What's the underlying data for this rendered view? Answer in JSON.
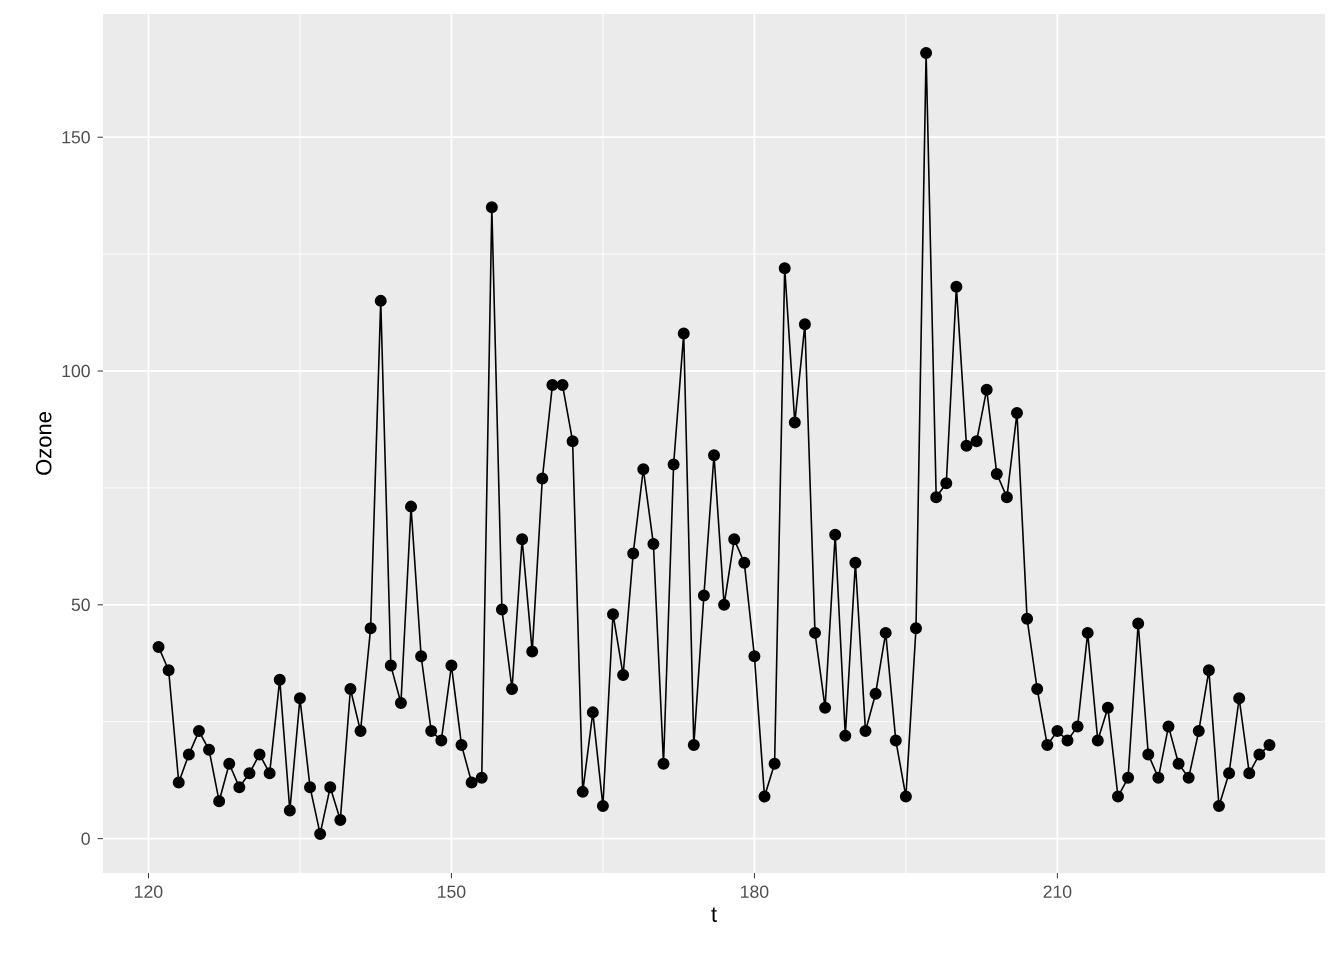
{
  "chart_data": {
    "type": "line",
    "xlabel": "t",
    "ylabel": "Ozone",
    "x": [
      121,
      122,
      123,
      124,
      125,
      126,
      127,
      128,
      129,
      130,
      131,
      132,
      133,
      134,
      135,
      136,
      137,
      138,
      139,
      140,
      141,
      142,
      143,
      144,
      145,
      146,
      147,
      148,
      149,
      150,
      151,
      152,
      153,
      154,
      155,
      156,
      157,
      158,
      159,
      160,
      161,
      162,
      163,
      164,
      165,
      166,
      167,
      168,
      169,
      170,
      171,
      172,
      173,
      174,
      175,
      176,
      177,
      178,
      179,
      180,
      181,
      182,
      183,
      184,
      185,
      186,
      187,
      188,
      189,
      190,
      191,
      192,
      193,
      194,
      195,
      196,
      197,
      198,
      199,
      200,
      201,
      202,
      203,
      204,
      205,
      206,
      207,
      208,
      209,
      210,
      211,
      212,
      213,
      214,
      215,
      216,
      217,
      218,
      219,
      220,
      221,
      222,
      223,
      224,
      225,
      226,
      227,
      228,
      229,
      230,
      231
    ],
    "series": [
      {
        "color": "#000000",
        "values": [
          41,
          36,
          12,
          18,
          23,
          19,
          8,
          16,
          11,
          14,
          18,
          14,
          34,
          6,
          30,
          11,
          1,
          11,
          4,
          32,
          23,
          45,
          115,
          37,
          29,
          71,
          39,
          23,
          21,
          37,
          20,
          12,
          13,
          135,
          49,
          32,
          64,
          40,
          77,
          97,
          97,
          85,
          10,
          27,
          7,
          48,
          35,
          61,
          79,
          63,
          16,
          80,
          108,
          20,
          52,
          82,
          50,
          64,
          59,
          39,
          9,
          16,
          122,
          89,
          110,
          44,
          28,
          65,
          22,
          59,
          23,
          31,
          44,
          21,
          9,
          45,
          168,
          73,
          76,
          118,
          84,
          85,
          96,
          78,
          73,
          91,
          47,
          32,
          20,
          23,
          21,
          24,
          44,
          21,
          28,
          9,
          13,
          46,
          18,
          13,
          24,
          16,
          13,
          23,
          36,
          7,
          14,
          30,
          14,
          18,
          20
        ]
      }
    ],
    "xlim": [
      115.5,
      236.5
    ],
    "ylim": [
      -7.35,
      176.35
    ],
    "xticks": [
      120,
      150,
      180,
      210
    ],
    "yticks": [
      0,
      50,
      100,
      150
    ],
    "grid": true,
    "marker": "circle",
    "line_style": "solid"
  }
}
